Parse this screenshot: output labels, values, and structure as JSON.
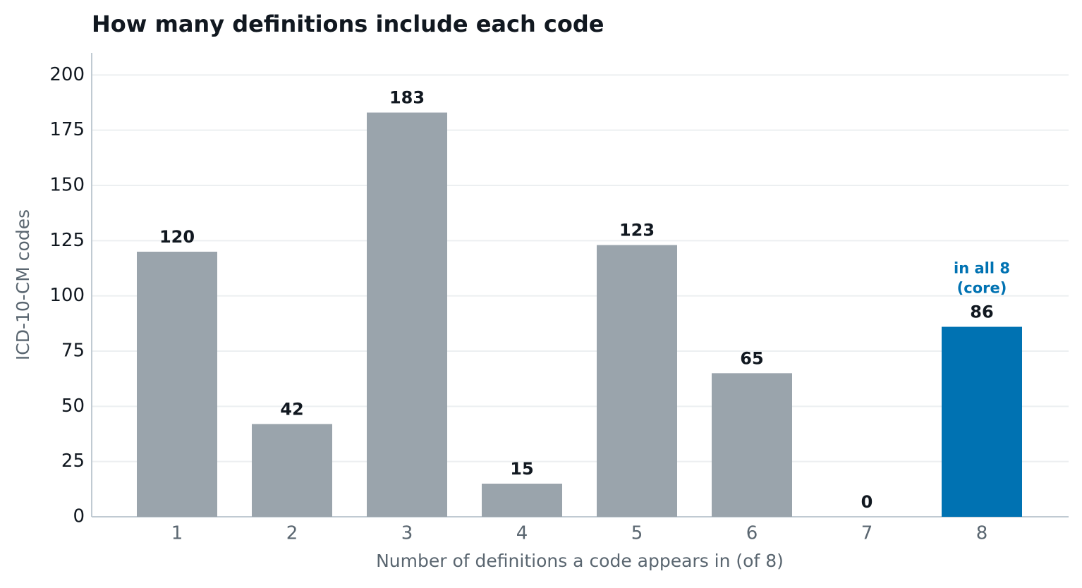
{
  "chart_data": {
    "type": "bar",
    "title": "How many definitions include each code",
    "x_label": "Number of definitions a code appears in (of 8)",
    "y_label": "ICD-10-CM codes",
    "categories": [
      "1",
      "2",
      "3",
      "4",
      "5",
      "6",
      "7",
      "8"
    ],
    "values": [
      120,
      42,
      183,
      15,
      123,
      65,
      0,
      86
    ],
    "colors": [
      "#9aa4ac",
      "#9aa4ac",
      "#9aa4ac",
      "#9aa4ac",
      "#9aa4ac",
      "#9aa4ac",
      "#9aa4ac",
      "#0072b2"
    ],
    "annotation": {
      "lines": [
        "in all 8",
        "(core)"
      ],
      "color": "#0072b2"
    },
    "ylim": [
      0,
      210
    ],
    "yticks": [
      0,
      25,
      50,
      75,
      100,
      125,
      150,
      175,
      200
    ],
    "grid": true
  }
}
